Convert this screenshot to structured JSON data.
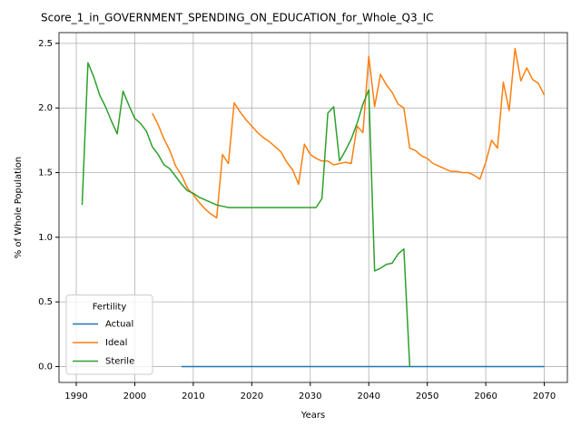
{
  "chart_data": {
    "type": "line",
    "title": "Score_1_in_GOVERNMENT_SPENDING_ON_EDUCATION_for_Whole_Q3_IC",
    "xlabel": "Years",
    "ylabel": "% of Whole Population",
    "x": [
      1991,
      1992,
      1993,
      1994,
      1995,
      1996,
      1997,
      1998,
      1999,
      2000,
      2001,
      2002,
      2003,
      2004,
      2005,
      2006,
      2007,
      2008,
      2009,
      2010,
      2011,
      2012,
      2013,
      2014,
      2015,
      2016,
      2017,
      2018,
      2019,
      2020,
      2021,
      2022,
      2023,
      2024,
      2025,
      2026,
      2027,
      2028,
      2029,
      2030,
      2031,
      2032,
      2033,
      2034,
      2035,
      2036,
      2037,
      2038,
      2039,
      2040,
      2041,
      2042,
      2043,
      2044,
      2045,
      2046,
      2047,
      2048,
      2049,
      2050,
      2051,
      2052,
      2053,
      2054,
      2055,
      2056,
      2057,
      2058,
      2059,
      2060,
      2061,
      2062,
      2063,
      2064,
      2065,
      2066,
      2067,
      2068,
      2069,
      2070
    ],
    "series": [
      {
        "name": "Actual",
        "color": "#1f77b4",
        "values": [
          null,
          null,
          null,
          null,
          null,
          null,
          null,
          null,
          null,
          null,
          null,
          null,
          null,
          null,
          null,
          null,
          null,
          0,
          0,
          0,
          0,
          0,
          0,
          0,
          0,
          0,
          0,
          0,
          0,
          0,
          0,
          0,
          0,
          0,
          0,
          0,
          0,
          0,
          0,
          0,
          0,
          0,
          0,
          0,
          0,
          0,
          0,
          0,
          0,
          0,
          0,
          0,
          0,
          0,
          0,
          0,
          0,
          0,
          0,
          0,
          0,
          0,
          0,
          0,
          0,
          0,
          0,
          0,
          0,
          0,
          0,
          0,
          0,
          0,
          0,
          0,
          0,
          0,
          0,
          0
        ]
      },
      {
        "name": "Ideal",
        "color": "#ff7f0e",
        "values": [
          null,
          null,
          null,
          null,
          null,
          null,
          null,
          null,
          null,
          null,
          null,
          null,
          1.96,
          1.87,
          1.76,
          1.67,
          1.55,
          1.48,
          1.38,
          1.33,
          1.27,
          1.22,
          1.18,
          1.15,
          1.64,
          1.57,
          2.04,
          1.97,
          1.91,
          1.86,
          1.81,
          1.77,
          1.74,
          1.7,
          1.66,
          1.58,
          1.52,
          1.41,
          1.72,
          1.64,
          1.61,
          1.59,
          1.59,
          1.56,
          1.57,
          1.58,
          1.57,
          1.86,
          1.81,
          2.4,
          2.01,
          2.26,
          2.18,
          2.12,
          2.03,
          2.0,
          1.69,
          1.67,
          1.63,
          1.61,
          1.57,
          1.55,
          1.53,
          1.51,
          1.51,
          1.5,
          1.5,
          1.48,
          1.45,
          1.58,
          1.75,
          1.69,
          2.2,
          1.98,
          2.46,
          2.21,
          2.31,
          2.22,
          2.19,
          2.1
        ]
      },
      {
        "name": "Sterile",
        "color": "#2ca02c",
        "values": [
          1.25,
          2.35,
          2.24,
          2.1,
          2.01,
          1.9,
          1.8,
          2.13,
          2.02,
          1.92,
          1.88,
          1.82,
          1.7,
          1.64,
          1.56,
          1.53,
          1.47,
          1.41,
          1.36,
          1.34,
          1.31,
          1.29,
          1.27,
          1.25,
          1.24,
          1.23,
          1.23,
          1.23,
          1.23,
          1.23,
          1.23,
          1.23,
          1.23,
          1.23,
          1.23,
          1.23,
          1.23,
          1.23,
          1.23,
          1.23,
          1.23,
          1.3,
          1.96,
          2.01,
          1.59,
          1.67,
          1.76,
          1.88,
          2.03,
          2.14,
          0.74,
          0.76,
          0.79,
          0.8,
          0.87,
          0.91,
          0.0,
          null,
          null,
          null,
          null,
          null,
          null,
          null,
          null,
          null,
          null,
          null,
          null,
          null,
          null,
          null,
          null,
          null,
          null,
          null,
          null,
          null,
          null,
          null
        ]
      }
    ],
    "xlim": [
      1987.05,
      2073.95
    ],
    "ylim": [
      -0.123,
      2.583
    ],
    "xticks": [
      1990,
      2000,
      2010,
      2020,
      2030,
      2040,
      2050,
      2060,
      2070
    ],
    "yticks": [
      {
        "value": 0,
        "label": "0.0"
      },
      {
        "value": 0.5,
        "label": "0.5"
      },
      {
        "value": 1,
        "label": "1.0"
      },
      {
        "value": 1.5,
        "label": "1.5"
      },
      {
        "value": 2,
        "label": "2.0"
      },
      {
        "value": 2.5,
        "label": "2.5"
      }
    ],
    "grid": true,
    "legend": {
      "title": "Fertility",
      "loc": "lower left"
    }
  }
}
